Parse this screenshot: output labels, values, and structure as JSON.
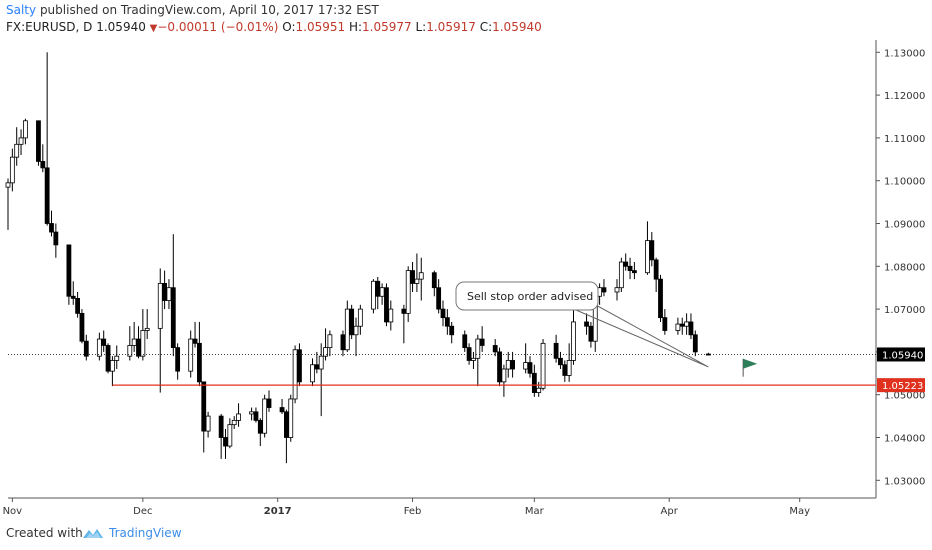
{
  "header": {
    "author": "Salty",
    "published_text": " published on TradingView.com, April 10, 2017 17:32 EST",
    "symbol_label": "FX:EURUSD, D",
    "last": "1.05940",
    "change": "−0.00011 (−0.01%)",
    "o_label": "O:",
    "o_value": "1.05951",
    "h_label": "H:",
    "h_value": "1.05977",
    "l_label": "L:",
    "l_value": "1.05917",
    "c_label": "C:",
    "c_value": "1.05940"
  },
  "footer": {
    "created_with": "Created with",
    "brand": "TradingView"
  },
  "colors": {
    "up": "#ffffff",
    "down": "#000000",
    "support": "#e0301e",
    "price_tag": "#000000",
    "support_tag": "#e0301e",
    "flag": "#2e7d5b",
    "logo": "#5fb4e8"
  },
  "chart_data": {
    "type": "candlestick",
    "symbol": "FX:EURUSD",
    "interval": "D",
    "ylim": [
      1.0275,
      1.1335
    ],
    "y_ticks": [
      "1.03000",
      "1.04000",
      "1.05000",
      "1.06000",
      "1.07000",
      "1.08000",
      "1.09000",
      "1.10000",
      "1.11000",
      "1.12000",
      "1.13000"
    ],
    "x_ticks": [
      {
        "label": "Nov",
        "date": "2016-11-01"
      },
      {
        "label": "Dec",
        "date": "2016-12-01"
      },
      {
        "label": "2017",
        "date": "2017-01-01"
      },
      {
        "label": "Feb",
        "date": "2017-02-01"
      },
      {
        "label": "Mar",
        "date": "2017-03-01"
      },
      {
        "label": "Apr",
        "date": "2017-04-01"
      },
      {
        "label": "May",
        "date": "2017-05-01"
      }
    ],
    "x_range": [
      "2016-10-31",
      "2017-05-10"
    ],
    "last_price": 1.0594,
    "last_price_label": "1.05940",
    "support_level": 1.05223,
    "support_start": "2016-11-24",
    "support_label": "1.05223",
    "annotation": {
      "text": "Sell stop order advised",
      "target_date": "2017-04-10",
      "target_price": 1.0565
    },
    "flag_date": "2017-04-18",
    "flag_price": 1.0542,
    "candles": [
      {
        "d": "2016-10-31",
        "o": 1.0985,
        "h": 1.1005,
        "l": 1.0885,
        "c": 1.0995
      },
      {
        "d": "2016-11-01",
        "o": 1.0995,
        "h": 1.1075,
        "l": 1.0975,
        "c": 1.1055
      },
      {
        "d": "2016-11-02",
        "o": 1.1055,
        "h": 1.1125,
        "l": 1.1035,
        "c": 1.1085
      },
      {
        "d": "2016-11-03",
        "o": 1.1085,
        "h": 1.112,
        "l": 1.106,
        "c": 1.11
      },
      {
        "d": "2016-11-04",
        "o": 1.11,
        "h": 1.1145,
        "l": 1.1085,
        "c": 1.114
      },
      {
        "d": "2016-11-07",
        "o": 1.114,
        "h": 1.1135,
        "l": 1.1035,
        "c": 1.1045
      },
      {
        "d": "2016-11-08",
        "o": 1.1045,
        "h": 1.1085,
        "l": 1.102,
        "c": 1.103
      },
      {
        "d": "2016-11-09",
        "o": 1.103,
        "h": 1.13,
        "l": 1.0895,
        "c": 1.09
      },
      {
        "d": "2016-11-10",
        "o": 1.09,
        "h": 1.093,
        "l": 1.087,
        "c": 1.088
      },
      {
        "d": "2016-11-11",
        "o": 1.088,
        "h": 1.09,
        "l": 1.082,
        "c": 1.085
      },
      {
        "d": "2016-11-14",
        "o": 1.085,
        "h": 1.085,
        "l": 1.071,
        "c": 1.073
      },
      {
        "d": "2016-11-15",
        "o": 1.073,
        "h": 1.0765,
        "l": 1.071,
        "c": 1.0725
      },
      {
        "d": "2016-11-16",
        "o": 1.0725,
        "h": 1.074,
        "l": 1.068,
        "c": 1.069
      },
      {
        "d": "2016-11-17",
        "o": 1.069,
        "h": 1.07,
        "l": 1.062,
        "c": 1.0625
      },
      {
        "d": "2016-11-18",
        "o": 1.0625,
        "h": 1.064,
        "l": 1.058,
        "c": 1.059
      },
      {
        "d": "2016-11-21",
        "o": 1.059,
        "h": 1.0645,
        "l": 1.058,
        "c": 1.063
      },
      {
        "d": "2016-11-22",
        "o": 1.063,
        "h": 1.065,
        "l": 1.06,
        "c": 1.0615
      },
      {
        "d": "2016-11-23",
        "o": 1.0615,
        "h": 1.062,
        "l": 1.055,
        "c": 1.0555
      },
      {
        "d": "2016-11-24",
        "o": 1.0555,
        "h": 1.059,
        "l": 1.052,
        "c": 1.058
      },
      {
        "d": "2016-11-25",
        "o": 1.058,
        "h": 1.0615,
        "l": 1.056,
        "c": 1.059
      },
      {
        "d": "2016-11-28",
        "o": 1.059,
        "h": 1.066,
        "l": 1.058,
        "c": 1.0615
      },
      {
        "d": "2016-11-29",
        "o": 1.0615,
        "h": 1.067,
        "l": 1.06,
        "c": 1.063
      },
      {
        "d": "2016-11-30",
        "o": 1.063,
        "h": 1.066,
        "l": 1.0585,
        "c": 1.059
      },
      {
        "d": "2016-12-01",
        "o": 1.059,
        "h": 1.07,
        "l": 1.058,
        "c": 1.065
      },
      {
        "d": "2016-12-02",
        "o": 1.065,
        "h": 1.07,
        "l": 1.063,
        "c": 1.0655
      },
      {
        "d": "2016-12-05",
        "o": 1.0655,
        "h": 1.0795,
        "l": 1.0505,
        "c": 1.076
      },
      {
        "d": "2016-12-06",
        "o": 1.076,
        "h": 1.079,
        "l": 1.07,
        "c": 1.072
      },
      {
        "d": "2016-12-07",
        "o": 1.072,
        "h": 1.077,
        "l": 1.07,
        "c": 1.075
      },
      {
        "d": "2016-12-08",
        "o": 1.075,
        "h": 1.0875,
        "l": 1.059,
        "c": 1.061
      },
      {
        "d": "2016-12-09",
        "o": 1.061,
        "h": 1.062,
        "l": 1.0535,
        "c": 1.0555
      },
      {
        "d": "2016-12-12",
        "o": 1.0555,
        "h": 1.065,
        "l": 1.054,
        "c": 1.063
      },
      {
        "d": "2016-12-13",
        "o": 1.063,
        "h": 1.067,
        "l": 1.061,
        "c": 1.062
      },
      {
        "d": "2016-12-14",
        "o": 1.062,
        "h": 1.067,
        "l": 1.052,
        "c": 1.053
      },
      {
        "d": "2016-12-15",
        "o": 1.053,
        "h": 1.053,
        "l": 1.0365,
        "c": 1.0415
      },
      {
        "d": "2016-12-16",
        "o": 1.0415,
        "h": 1.046,
        "l": 1.04,
        "c": 1.045
      },
      {
        "d": "2016-12-19",
        "o": 1.045,
        "h": 1.0455,
        "l": 1.035,
        "c": 1.04
      },
      {
        "d": "2016-12-20",
        "o": 1.04,
        "h": 1.042,
        "l": 1.035,
        "c": 1.038
      },
      {
        "d": "2016-12-21",
        "o": 1.038,
        "h": 1.0445,
        "l": 1.0375,
        "c": 1.043
      },
      {
        "d": "2016-12-22",
        "o": 1.043,
        "h": 1.045,
        "l": 1.042,
        "c": 1.044
      },
      {
        "d": "2016-12-23",
        "o": 1.044,
        "h": 1.048,
        "l": 1.0425,
        "c": 1.0455
      },
      {
        "d": "2016-12-26",
        "o": 1.0455,
        "h": 1.047,
        "l": 1.044,
        "c": 1.046
      },
      {
        "d": "2016-12-27",
        "o": 1.046,
        "h": 1.047,
        "l": 1.0435,
        "c": 1.044
      },
      {
        "d": "2016-12-28",
        "o": 1.044,
        "h": 1.0445,
        "l": 1.038,
        "c": 1.041
      },
      {
        "d": "2016-12-29",
        "o": 1.041,
        "h": 1.05,
        "l": 1.04,
        "c": 1.049
      },
      {
        "d": "2016-12-30",
        "o": 1.049,
        "h": 1.051,
        "l": 1.046,
        "c": 1.047
      },
      {
        "d": "2017-01-02",
        "o": 1.047,
        "h": 1.049,
        "l": 1.0455,
        "c": 1.046
      },
      {
        "d": "2017-01-03",
        "o": 1.046,
        "h": 1.0465,
        "l": 1.034,
        "c": 1.04
      },
      {
        "d": "2017-01-04",
        "o": 1.04,
        "h": 1.05,
        "l": 1.039,
        "c": 1.049
      },
      {
        "d": "2017-01-05",
        "o": 1.049,
        "h": 1.0615,
        "l": 1.048,
        "c": 1.0605
      },
      {
        "d": "2017-01-06",
        "o": 1.0605,
        "h": 1.062,
        "l": 1.052,
        "c": 1.053
      },
      {
        "d": "2017-01-09",
        "o": 1.053,
        "h": 1.0585,
        "l": 1.052,
        "c": 1.057
      },
      {
        "d": "2017-01-10",
        "o": 1.057,
        "h": 1.06,
        "l": 1.055,
        "c": 1.056
      },
      {
        "d": "2017-01-11",
        "o": 1.056,
        "h": 1.062,
        "l": 1.045,
        "c": 1.059
      },
      {
        "d": "2017-01-12",
        "o": 1.059,
        "h": 1.0655,
        "l": 1.058,
        "c": 1.061
      },
      {
        "d": "2017-01-13",
        "o": 1.061,
        "h": 1.065,
        "l": 1.059,
        "c": 1.064
      },
      {
        "d": "2017-01-16",
        "o": 1.064,
        "h": 1.065,
        "l": 1.059,
        "c": 1.0605
      },
      {
        "d": "2017-01-17",
        "o": 1.0605,
        "h": 1.072,
        "l": 1.06,
        "c": 1.07
      },
      {
        "d": "2017-01-18",
        "o": 1.07,
        "h": 1.071,
        "l": 1.063,
        "c": 1.064
      },
      {
        "d": "2017-01-19",
        "o": 1.064,
        "h": 1.068,
        "l": 1.059,
        "c": 1.066
      },
      {
        "d": "2017-01-20",
        "o": 1.066,
        "h": 1.071,
        "l": 1.064,
        "c": 1.07
      },
      {
        "d": "2017-01-23",
        "o": 1.07,
        "h": 1.077,
        "l": 1.069,
        "c": 1.0765
      },
      {
        "d": "2017-01-24",
        "o": 1.0765,
        "h": 1.0775,
        "l": 1.07,
        "c": 1.073
      },
      {
        "d": "2017-01-25",
        "o": 1.073,
        "h": 1.076,
        "l": 1.071,
        "c": 1.075
      },
      {
        "d": "2017-01-26",
        "o": 1.075,
        "h": 1.076,
        "l": 1.066,
        "c": 1.067
      },
      {
        "d": "2017-01-27",
        "o": 1.067,
        "h": 1.072,
        "l": 1.065,
        "c": 1.07
      },
      {
        "d": "2017-01-30",
        "o": 1.07,
        "h": 1.071,
        "l": 1.062,
        "c": 1.069
      },
      {
        "d": "2017-01-31",
        "o": 1.069,
        "h": 1.08,
        "l": 1.067,
        "c": 1.079
      },
      {
        "d": "2017-02-01",
        "o": 1.079,
        "h": 1.081,
        "l": 1.074,
        "c": 1.076
      },
      {
        "d": "2017-02-02",
        "o": 1.076,
        "h": 1.083,
        "l": 1.074,
        "c": 1.077
      },
      {
        "d": "2017-02-03",
        "o": 1.077,
        "h": 1.082,
        "l": 1.072,
        "c": 1.0785
      },
      {
        "d": "2017-02-06",
        "o": 1.0785,
        "h": 1.079,
        "l": 1.073,
        "c": 1.075
      },
      {
        "d": "2017-02-07",
        "o": 1.075,
        "h": 1.077,
        "l": 1.069,
        "c": 1.07
      },
      {
        "d": "2017-02-08",
        "o": 1.07,
        "h": 1.072,
        "l": 1.066,
        "c": 1.068
      },
      {
        "d": "2017-02-09",
        "o": 1.068,
        "h": 1.07,
        "l": 1.064,
        "c": 1.066
      },
      {
        "d": "2017-02-10",
        "o": 1.066,
        "h": 1.067,
        "l": 1.062,
        "c": 1.064
      },
      {
        "d": "2017-02-13",
        "o": 1.064,
        "h": 1.065,
        "l": 1.06,
        "c": 1.061
      },
      {
        "d": "2017-02-14",
        "o": 1.061,
        "h": 1.062,
        "l": 1.057,
        "c": 1.058
      },
      {
        "d": "2017-02-15",
        "o": 1.058,
        "h": 1.06,
        "l": 1.056,
        "c": 1.0585
      },
      {
        "d": "2017-02-16",
        "o": 1.0585,
        "h": 1.064,
        "l": 1.052,
        "c": 1.063
      },
      {
        "d": "2017-02-17",
        "o": 1.063,
        "h": 1.066,
        "l": 1.06,
        "c": 1.0615
      },
      {
        "d": "2017-02-20",
        "o": 1.0615,
        "h": 1.063,
        "l": 1.059,
        "c": 1.06
      },
      {
        "d": "2017-02-21",
        "o": 1.06,
        "h": 1.061,
        "l": 1.052,
        "c": 1.053
      },
      {
        "d": "2017-02-22",
        "o": 1.053,
        "h": 1.057,
        "l": 1.0495,
        "c": 1.056
      },
      {
        "d": "2017-02-23",
        "o": 1.056,
        "h": 1.06,
        "l": 1.054,
        "c": 1.058
      },
      {
        "d": "2017-02-24",
        "o": 1.058,
        "h": 1.06,
        "l": 1.054,
        "c": 1.056
      },
      {
        "d": "2017-02-27",
        "o": 1.056,
        "h": 1.062,
        "l": 1.055,
        "c": 1.0575
      },
      {
        "d": "2017-02-28",
        "o": 1.0575,
        "h": 1.059,
        "l": 1.054,
        "c": 1.055
      },
      {
        "d": "2017-03-01",
        "o": 1.055,
        "h": 1.057,
        "l": 1.0495,
        "c": 1.0505
      },
      {
        "d": "2017-03-02",
        "o": 1.0505,
        "h": 1.053,
        "l": 1.0495,
        "c": 1.0515
      },
      {
        "d": "2017-03-03",
        "o": 1.0515,
        "h": 1.063,
        "l": 1.051,
        "c": 1.062
      },
      {
        "d": "2017-03-06",
        "o": 1.062,
        "h": 1.064,
        "l": 1.0575,
        "c": 1.0585
      },
      {
        "d": "2017-03-07",
        "o": 1.0585,
        "h": 1.06,
        "l": 1.056,
        "c": 1.057
      },
      {
        "d": "2017-03-08",
        "o": 1.057,
        "h": 1.058,
        "l": 1.053,
        "c": 1.0545
      },
      {
        "d": "2017-03-09",
        "o": 1.0545,
        "h": 1.062,
        "l": 1.053,
        "c": 1.058
      },
      {
        "d": "2017-03-10",
        "o": 1.058,
        "h": 1.071,
        "l": 1.057,
        "c": 1.067
      },
      {
        "d": "2017-03-13",
        "o": 1.067,
        "h": 1.069,
        "l": 1.064,
        "c": 1.066
      },
      {
        "d": "2017-03-14",
        "o": 1.066,
        "h": 1.067,
        "l": 1.061,
        "c": 1.0625
      },
      {
        "d": "2017-03-15",
        "o": 1.0625,
        "h": 1.074,
        "l": 1.06,
        "c": 1.073
      },
      {
        "d": "2017-03-16",
        "o": 1.073,
        "h": 1.076,
        "l": 1.071,
        "c": 1.075
      },
      {
        "d": "2017-03-17",
        "o": 1.075,
        "h": 1.077,
        "l": 1.073,
        "c": 1.074
      },
      {
        "d": "2017-03-20",
        "o": 1.074,
        "h": 1.077,
        "l": 1.072,
        "c": 1.075
      },
      {
        "d": "2017-03-21",
        "o": 1.075,
        "h": 1.082,
        "l": 1.074,
        "c": 1.081
      },
      {
        "d": "2017-03-22",
        "o": 1.081,
        "h": 1.083,
        "l": 1.079,
        "c": 1.08
      },
      {
        "d": "2017-03-23",
        "o": 1.08,
        "h": 1.082,
        "l": 1.077,
        "c": 1.079
      },
      {
        "d": "2017-03-24",
        "o": 1.079,
        "h": 1.081,
        "l": 1.077,
        "c": 1.0785
      },
      {
        "d": "2017-03-27",
        "o": 1.0785,
        "h": 1.0905,
        "l": 1.078,
        "c": 1.086
      },
      {
        "d": "2017-03-28",
        "o": 1.086,
        "h": 1.088,
        "l": 1.08,
        "c": 1.0815
      },
      {
        "d": "2017-03-29",
        "o": 1.0815,
        "h": 1.082,
        "l": 1.074,
        "c": 1.077
      },
      {
        "d": "2017-03-30",
        "o": 1.077,
        "h": 1.078,
        "l": 1.067,
        "c": 1.068
      },
      {
        "d": "2017-03-31",
        "o": 1.068,
        "h": 1.07,
        "l": 1.064,
        "c": 1.065
      },
      {
        "d": "2017-04-03",
        "o": 1.065,
        "h": 1.068,
        "l": 1.064,
        "c": 1.0665
      },
      {
        "d": "2017-04-04",
        "o": 1.0665,
        "h": 1.068,
        "l": 1.064,
        "c": 1.066
      },
      {
        "d": "2017-04-05",
        "o": 1.066,
        "h": 1.069,
        "l": 1.064,
        "c": 1.067
      },
      {
        "d": "2017-04-06",
        "o": 1.067,
        "h": 1.069,
        "l": 1.063,
        "c": 1.064
      },
      {
        "d": "2017-04-07",
        "o": 1.064,
        "h": 1.065,
        "l": 1.059,
        "c": 1.06
      },
      {
        "d": "2017-04-10",
        "o": 1.0595,
        "h": 1.0598,
        "l": 1.0592,
        "c": 1.0594
      }
    ]
  }
}
